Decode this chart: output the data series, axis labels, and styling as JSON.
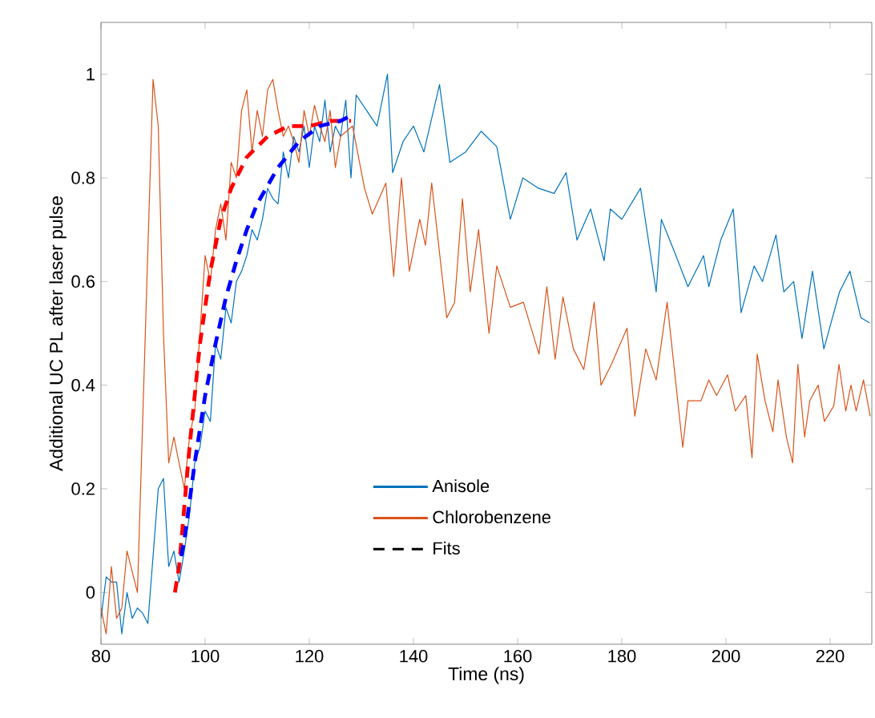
{
  "chart_data": {
    "type": "line",
    "xlabel": "Time (ns)",
    "ylabel": "Additional UC PL after laser pulse",
    "xlim": [
      80,
      228
    ],
    "ylim": [
      -0.1,
      1.1
    ],
    "xticks": [
      80,
      100,
      120,
      140,
      160,
      180,
      200,
      220
    ],
    "yticks": [
      0,
      0.2,
      0.4,
      0.6,
      0.8,
      1
    ],
    "legend": "bottom",
    "grid": false,
    "marker": "none",
    "annotations": [
      "Fits"
    ],
    "series": [
      {
        "name": "Anisole",
        "color": "#0072bd",
        "line_style": "solid",
        "x": [
          80,
          81,
          82,
          83,
          84,
          85,
          86,
          87,
          88,
          89,
          90,
          91,
          92,
          93,
          94,
          95,
          96,
          97,
          98,
          99,
          100,
          101,
          102,
          103,
          104,
          105,
          106,
          107,
          108,
          109,
          110,
          111,
          112,
          113,
          114,
          115,
          116,
          117,
          118,
          119,
          120,
          121,
          122,
          123,
          124,
          125,
          126,
          127,
          128,
          129,
          131,
          133,
          135,
          136,
          138,
          140,
          142,
          145,
          147,
          150,
          153,
          156,
          158.6,
          161,
          164,
          167,
          169.3,
          171.4,
          174,
          176.6,
          177.8,
          180,
          183.6,
          186.6,
          187.6,
          190,
          192.7,
          195.7,
          196.7,
          199,
          201.4,
          202.9,
          205.4,
          207,
          209.6,
          211.1,
          213,
          214.6,
          216.6,
          218.8,
          221.8,
          223.8,
          225.9,
          227.6
        ],
        "values": [
          -0.05,
          0.03,
          0.02,
          0.02,
          -0.08,
          0.0,
          -0.05,
          -0.03,
          -0.04,
          -0.06,
          null,
          0.2,
          0.22,
          0.05,
          0.08,
          0.02,
          0.08,
          0.15,
          0.25,
          0.28,
          0.35,
          0.33,
          0.48,
          0.45,
          0.55,
          0.52,
          0.6,
          0.62,
          0.65,
          0.7,
          0.68,
          0.72,
          0.78,
          0.76,
          0.75,
          0.85,
          0.8,
          0.88,
          0.85,
          0.9,
          0.82,
          0.9,
          0.87,
          0.95,
          0.85,
          0.9,
          0.88,
          0.95,
          0.8,
          0.96,
          0.93,
          0.9,
          1.0,
          0.81,
          0.87,
          0.9,
          0.85,
          0.98,
          0.83,
          0.85,
          0.89,
          0.86,
          0.72,
          0.8,
          0.78,
          0.77,
          0.81,
          0.68,
          0.74,
          0.64,
          0.74,
          0.72,
          0.78,
          0.58,
          0.72,
          0.66,
          0.59,
          0.65,
          0.59,
          0.68,
          0.74,
          0.54,
          0.63,
          0.6,
          0.69,
          0.58,
          0.6,
          0.49,
          0.62,
          0.47,
          0.58,
          0.62,
          0.53,
          0.52
        ]
      },
      {
        "name": "Chlorobenzene",
        "color": "#d95319",
        "line_style": "solid",
        "x": [
          80,
          81,
          82,
          83,
          84,
          85,
          86,
          87,
          88,
          89,
          90,
          91,
          92,
          93,
          94,
          95,
          96,
          97,
          98,
          99,
          100,
          101,
          102,
          103,
          104,
          105,
          106,
          107,
          108,
          109,
          110,
          111,
          112,
          113,
          114,
          115,
          116,
          117,
          118,
          119,
          120,
          121,
          122,
          123,
          124,
          125,
          126,
          128.3,
          130.6,
          132.1,
          134.7,
          136.2,
          137.7,
          139.2,
          141.2,
          142.3,
          143.5,
          146.4,
          147.9,
          149.4,
          150.9,
          152.5,
          154.5,
          156,
          158.6,
          161.1,
          164.1,
          165.6,
          167.2,
          168.7,
          170.7,
          172.7,
          174.7,
          176,
          178,
          181,
          182.5,
          184.6,
          186.6,
          188.7,
          191.7,
          192.7,
          195.2,
          196.7,
          198.2,
          200.3,
          201.8,
          203.8,
          205,
          206,
          207.5,
          209,
          210,
          211.6,
          212.8,
          213.8,
          215.1,
          216.1,
          217.7,
          218.9,
          220.7,
          221.7,
          223,
          224,
          225,
          226.4,
          227.7
        ],
        "values": [
          -0.03,
          -0.08,
          0.05,
          -0.05,
          -0.03,
          0.08,
          0.04,
          0.0,
          null,
          null,
          0.99,
          0.9,
          0.5,
          0.25,
          0.3,
          0.25,
          0.2,
          0.3,
          0.35,
          0.5,
          0.65,
          0.6,
          0.7,
          0.75,
          0.68,
          0.83,
          0.8,
          0.93,
          0.97,
          0.85,
          0.93,
          0.88,
          0.97,
          0.99,
          0.93,
          0.88,
          0.9,
          0.87,
          0.83,
          0.93,
          0.88,
          0.94,
          0.9,
          0.87,
          0.93,
          0.82,
          0.88,
          0.9,
          0.78,
          0.73,
          0.79,
          0.61,
          0.8,
          0.62,
          0.72,
          0.67,
          0.79,
          0.53,
          0.56,
          0.76,
          0.58,
          0.7,
          0.5,
          0.63,
          0.55,
          0.56,
          0.46,
          0.59,
          0.45,
          0.57,
          0.47,
          0.43,
          0.56,
          0.4,
          0.44,
          0.51,
          0.34,
          0.47,
          0.41,
          0.56,
          0.28,
          0.37,
          0.37,
          0.41,
          0.38,
          0.42,
          0.35,
          0.38,
          0.26,
          0.46,
          0.37,
          0.31,
          0.41,
          0.3,
          0.25,
          0.44,
          0.3,
          0.37,
          0.4,
          0.33,
          0.36,
          0.44,
          0.35,
          0.4,
          0.35,
          0.41,
          0.34
        ]
      },
      {
        "color": "#ff0000",
        "line_style": "dashed",
        "x": [
          94.2,
          95,
          97,
          99,
          101,
          103,
          105,
          108,
          112,
          116,
          120,
          124,
          128
        ],
        "values": [
          0.0,
          0.05,
          0.28,
          0.48,
          0.62,
          0.72,
          0.78,
          0.84,
          0.88,
          0.9,
          0.9,
          0.91,
          0.91
        ]
      },
      {
        "color": "#0000ff",
        "line_style": "dashed",
        "x": [
          95.4,
          96,
          98,
          100,
          102,
          104,
          106,
          108,
          110,
          114,
          118,
          122,
          126,
          128
        ],
        "values": [
          0.07,
          0.1,
          0.25,
          0.38,
          0.48,
          0.57,
          0.64,
          0.7,
          0.75,
          0.82,
          0.87,
          0.9,
          0.91,
          0.92
        ]
      }
    ]
  }
}
